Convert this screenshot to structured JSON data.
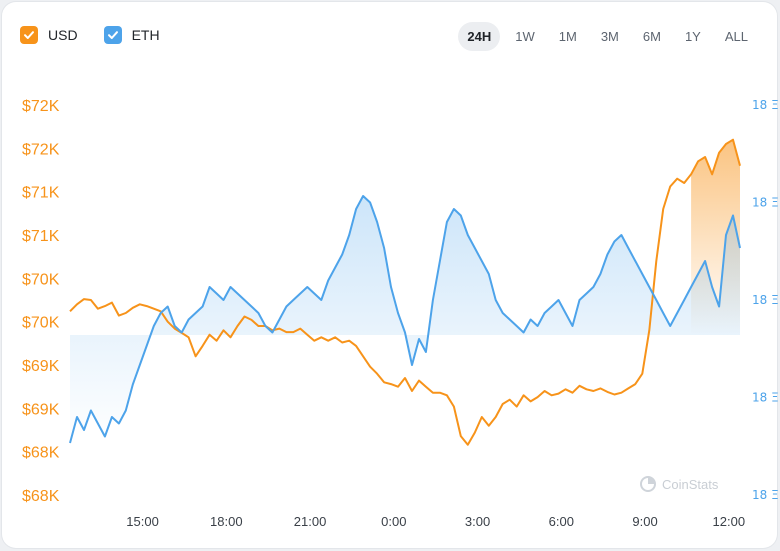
{
  "legend": [
    {
      "label": "USD",
      "checked": true,
      "color": "#f7931a"
    },
    {
      "label": "ETH",
      "checked": true,
      "color": "#4da3ea"
    }
  ],
  "ranges": [
    "24H",
    "1W",
    "1M",
    "3M",
    "6M",
    "1Y",
    "ALL"
  ],
  "active_range": "24H",
  "watermark": "CoinStats",
  "chart_data": {
    "type": "line",
    "x_ticks": [
      "15:00",
      "18:00",
      "21:00",
      "0:00",
      "3:00",
      "6:00",
      "9:00",
      "12:00"
    ],
    "y_left_ticks": [
      "$72K",
      "$72K",
      "$71K",
      "$71K",
      "$70K",
      "$70K",
      "$69K",
      "$69K",
      "$68K",
      "$68K"
    ],
    "y_left_range": [
      68000,
      72500
    ],
    "y_right_ticks": [
      "18 Ξ",
      "18 Ξ",
      "18 Ξ",
      "18 Ξ",
      "18 Ξ"
    ],
    "y_right_range": [
      17.7,
      18.3
    ],
    "grid": false,
    "series": [
      {
        "name": "USD",
        "color": "#f7931a",
        "axis": "left",
        "x": [
          0,
          0.25,
          0.5,
          0.75,
          1,
          1.25,
          1.5,
          1.75,
          2,
          2.25,
          2.5,
          2.75,
          3,
          3.25,
          3.5,
          3.75,
          4,
          4.25,
          4.5,
          4.75,
          5,
          5.25,
          5.5,
          5.75,
          6,
          6.25,
          6.5,
          6.75,
          7,
          7.25,
          7.5,
          7.75,
          8,
          8.25,
          8.5,
          8.75,
          9,
          9.25,
          9.5,
          9.75,
          10,
          10.25,
          10.5,
          10.75,
          11,
          11.25,
          11.5,
          11.75,
          12,
          12.25,
          12.5,
          12.75,
          13,
          13.25,
          13.5,
          13.75,
          14,
          14.25,
          14.5,
          14.75,
          15,
          15.25,
          15.5,
          15.75,
          16,
          16.25,
          16.5,
          16.75,
          17,
          17.25,
          17.5,
          17.75,
          18,
          18.25,
          18.5,
          18.75,
          19,
          19.25,
          19.5,
          19.75,
          20,
          20.25,
          20.5,
          20.75,
          21,
          21.25,
          21.5,
          21.75,
          22,
          22.25,
          22.5,
          22.75,
          23,
          23.25,
          23.5,
          23.75,
          24
        ],
        "values": [
          70120,
          70200,
          70260,
          70250,
          70150,
          70180,
          70220,
          70070,
          70100,
          70160,
          70200,
          70180,
          70150,
          70120,
          70000,
          69920,
          69870,
          69820,
          69600,
          69720,
          69850,
          69780,
          69900,
          69820,
          69950,
          70060,
          70020,
          69950,
          69950,
          69900,
          69920,
          69880,
          69880,
          69920,
          69850,
          69780,
          69820,
          69780,
          69820,
          69760,
          69780,
          69720,
          69600,
          69480,
          69400,
          69300,
          69280,
          69250,
          69350,
          69200,
          69320,
          69250,
          69180,
          69180,
          69150,
          69020,
          68680,
          68580,
          68720,
          68900,
          68800,
          68900,
          69050,
          69100,
          69020,
          69150,
          69080,
          69130,
          69200,
          69150,
          69170,
          69220,
          69180,
          69260,
          69220,
          69200,
          69230,
          69190,
          69160,
          69180,
          69230,
          69280,
          69400,
          69900,
          70700,
          71300,
          71560,
          71650,
          71600,
          71700,
          71850,
          71900,
          71700,
          71950,
          72050,
          72100,
          71800
        ]
      },
      {
        "name": "ETH",
        "color": "#4da3ea",
        "axis": "right",
        "x": [
          0,
          0.25,
          0.5,
          0.75,
          1,
          1.25,
          1.5,
          1.75,
          2,
          2.25,
          2.5,
          2.75,
          3,
          3.25,
          3.5,
          3.75,
          4,
          4.25,
          4.5,
          4.75,
          5,
          5.25,
          5.5,
          5.75,
          6,
          6.25,
          6.5,
          6.75,
          7,
          7.25,
          7.5,
          7.75,
          8,
          8.25,
          8.5,
          8.75,
          9,
          9.25,
          9.5,
          9.75,
          10,
          10.25,
          10.5,
          10.75,
          11,
          11.25,
          11.5,
          11.75,
          12,
          12.25,
          12.5,
          12.75,
          13,
          13.25,
          13.5,
          13.75,
          14,
          14.25,
          14.5,
          14.75,
          15,
          15.25,
          15.5,
          15.75,
          16,
          16.25,
          16.5,
          16.75,
          17,
          17.25,
          17.5,
          17.75,
          18,
          18.25,
          18.5,
          18.75,
          19,
          19.25,
          19.5,
          19.75,
          20,
          20.25,
          20.5,
          20.75,
          21,
          21.25,
          21.5,
          21.75,
          22,
          22.25,
          22.5,
          22.75,
          23,
          23.25,
          23.5,
          23.75,
          24
        ],
        "values": [
          17.78,
          17.82,
          17.8,
          17.83,
          17.81,
          17.79,
          17.82,
          17.81,
          17.83,
          17.87,
          17.9,
          17.93,
          17.96,
          17.98,
          17.99,
          17.96,
          17.95,
          17.97,
          17.98,
          17.99,
          18.02,
          18.01,
          18.0,
          18.02,
          18.01,
          18.0,
          17.99,
          17.98,
          17.96,
          17.95,
          17.97,
          17.99,
          18.0,
          18.01,
          18.02,
          18.01,
          18.0,
          18.03,
          18.05,
          18.07,
          18.1,
          18.14,
          18.16,
          18.15,
          18.12,
          18.08,
          18.02,
          17.98,
          17.95,
          17.9,
          17.94,
          17.92,
          18.0,
          18.06,
          18.12,
          18.14,
          18.13,
          18.1,
          18.08,
          18.06,
          18.04,
          18.0,
          17.98,
          17.97,
          17.96,
          17.95,
          17.97,
          17.96,
          17.98,
          17.99,
          18.0,
          17.98,
          17.96,
          18.0,
          18.01,
          18.02,
          18.04,
          18.07,
          18.09,
          18.1,
          18.08,
          18.06,
          18.04,
          18.02,
          18.0,
          17.98,
          17.96,
          17.98,
          18.0,
          18.02,
          18.04,
          18.06,
          18.02,
          17.99,
          18.1,
          18.13,
          18.08
        ]
      }
    ]
  }
}
